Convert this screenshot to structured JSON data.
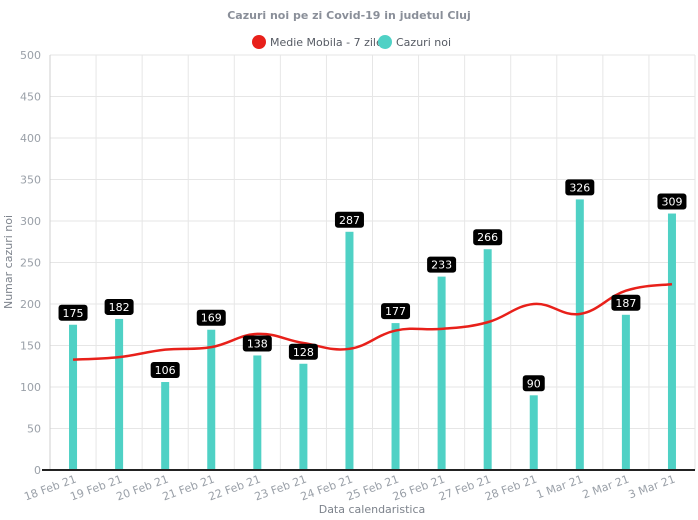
{
  "chart_data": {
    "type": "bar",
    "title": "Cazuri noi pe zi Covid-19 in judetul Cluj",
    "xlabel": "Data calendaristica",
    "ylabel": "Numar cazuri noi",
    "categories": [
      "18 Feb 21",
      "19 Feb 21",
      "20 Feb 21",
      "21 Feb 21",
      "22 Feb 21",
      "23 Feb 21",
      "24 Feb 21",
      "25 Feb 21",
      "26 Feb 21",
      "27 Feb 21",
      "28 Feb 21",
      "1 Mar 21",
      "2 Mar 21",
      "3 Mar 21"
    ],
    "ylim": [
      0,
      500
    ],
    "yticks": [
      0,
      50,
      100,
      150,
      200,
      250,
      300,
      350,
      400,
      450,
      500
    ],
    "grid": true,
    "legend_position": "top",
    "series": [
      {
        "name": "Medie Mobila - 7 zile",
        "type": "line",
        "color": "#e8201a",
        "values": [
          133,
          136,
          145,
          148,
          164,
          153,
          146,
          168,
          170,
          178,
          200,
          188,
          216,
          224
        ]
      },
      {
        "name": "Cazuri noi",
        "type": "bar",
        "color": "#4fd1c5",
        "values": [
          175,
          182,
          106,
          169,
          138,
          128,
          287,
          177,
          233,
          266,
          90,
          326,
          187,
          309
        ]
      }
    ]
  }
}
